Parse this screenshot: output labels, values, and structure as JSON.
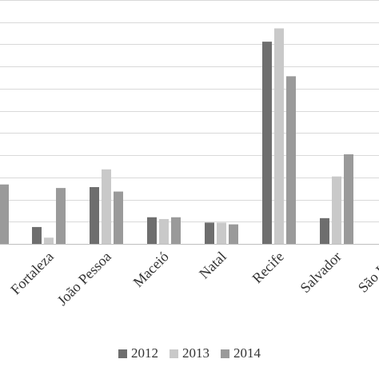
{
  "chart_data": {
    "type": "bar",
    "title": "",
    "xlabel": "",
    "ylabel": "",
    "categories": [
      "Fortaleza",
      "João Pessoa",
      "Maceió",
      "Natal",
      "Recife",
      "Salvador",
      "São Luís"
    ],
    "series": [
      {
        "name": "2012",
        "color": "#6e6e6e",
        "values": [
          19,
          64,
          30,
          24,
          228,
          29,
          null
        ]
      },
      {
        "name": "2013",
        "color": "#c9c9c9",
        "values": [
          7,
          84,
          28,
          24,
          243,
          76,
          null
        ]
      },
      {
        "name": "2014",
        "color": "#9a9a9a",
        "values": [
          63,
          59,
          30,
          22,
          189,
          101,
          null
        ]
      }
    ],
    "partial_group_left": {
      "values": [
        67
      ],
      "series_index": 2
    },
    "ylim": [
      0,
      275
    ],
    "gridlines": [
      25,
      50,
      75,
      100,
      125,
      150,
      175,
      200,
      225,
      250,
      275
    ],
    "grid": true,
    "legend_position": "bottom"
  }
}
